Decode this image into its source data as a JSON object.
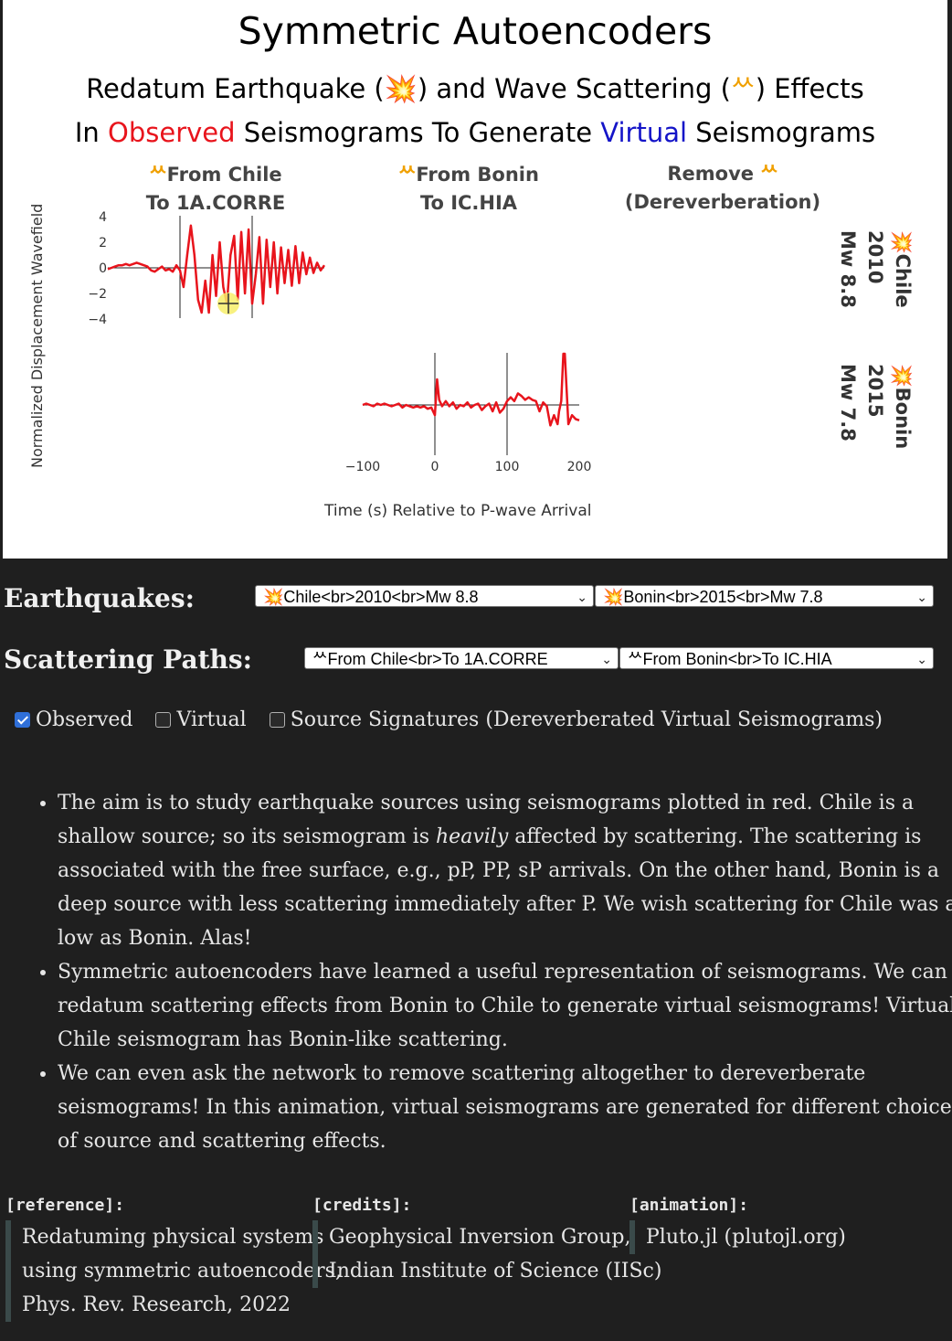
{
  "figure": {
    "title": "Symmetric Autoencoders",
    "subtitle1": {
      "part1": "Redatum Earthquake (",
      "quake_glyph": "💥",
      "part2": ") and Wave Scattering (",
      "scatter_glyph": "ᄊ",
      "part3": ") Effects"
    },
    "subtitle2": {
      "part1": "In ",
      "observed": "Observed",
      "part2": " Seismograms To Generate ",
      "virtual": "Virtual",
      "part3": " Seismograms"
    },
    "columns": [
      {
        "line1": "From Chile",
        "line2": "To 1A.CORRE"
      },
      {
        "line1": "From Bonin",
        "line2": "To IC.HIA"
      },
      {
        "line1": "Remove",
        "line2": "(Dereverberation)"
      }
    ],
    "rows": [
      {
        "name": "Chile",
        "year": "2010",
        "mag": "Mw 8.8"
      },
      {
        "name": "Bonin",
        "year": "2015",
        "mag": "Mw 7.8"
      }
    ],
    "ylabel": "Normalized Displacement Wavefield",
    "xlabel": "Time (s) Relative to P-wave Arrival",
    "colors": {
      "observed": "#e8141c",
      "virtual": "#1414c8",
      "scatter": "#f0a000"
    }
  },
  "chart_data": {
    "type": "line",
    "ylim": [
      -5,
      5
    ],
    "yticks": [
      "4",
      "2",
      "0",
      "−2",
      "−4"
    ],
    "ytick_values": [
      4,
      2,
      0,
      -2,
      -4
    ],
    "xlim": [
      -100,
      200
    ],
    "xticks": [
      "−100",
      "0",
      "100",
      "200"
    ],
    "xtick_values": [
      -100,
      0,
      100,
      200
    ],
    "series": [
      {
        "name": "Chile",
        "color": "#e8141c",
        "x": [
          -100,
          -95,
          -90,
          -85,
          -80,
          -75,
          -70,
          -65,
          -60,
          -55,
          -50,
          -45,
          -40,
          -35,
          -30,
          -25,
          -20,
          -15,
          -10,
          -5,
          0,
          5,
          10,
          15,
          20,
          25,
          30,
          35,
          40,
          45,
          50,
          55,
          60,
          65,
          70,
          75,
          80,
          85,
          90,
          95,
          100,
          105,
          110,
          115,
          120,
          125,
          130,
          135,
          140,
          145,
          150,
          155,
          160,
          165,
          170,
          175,
          180,
          185,
          190,
          195,
          200
        ],
        "y": [
          -0.1,
          0,
          0.1,
          0.2,
          0.2,
          0.3,
          0.2,
          0.3,
          0.4,
          0.3,
          0.2,
          0.1,
          -0.2,
          -0.3,
          -0.1,
          0.1,
          -0.2,
          -0.1,
          -0.3,
          0.2,
          -0.2,
          -1.5,
          1,
          3.3,
          1,
          -2.5,
          -3.5,
          -1,
          -3.5,
          1,
          -2.2,
          2,
          -1.5,
          -2.8,
          1,
          2.5,
          -2.5,
          2.8,
          -2,
          3,
          -2.8,
          -0.5,
          2.4,
          -2.8,
          2.2,
          -1.5,
          2,
          -2,
          1.6,
          -1.2,
          1.4,
          -1.4,
          1.7,
          -1.2,
          1.2,
          -0.5,
          0.8,
          -0.4,
          0.4,
          -0.2,
          0.2
        ]
      },
      {
        "name": "Bonin",
        "color": "#e8141c",
        "x": [
          -100,
          -95,
          -90,
          -85,
          -80,
          -75,
          -70,
          -65,
          -60,
          -55,
          -50,
          -45,
          -40,
          -35,
          -30,
          -25,
          -20,
          -15,
          -10,
          -5,
          0,
          3,
          6,
          10,
          15,
          20,
          25,
          30,
          35,
          40,
          45,
          50,
          55,
          60,
          65,
          70,
          75,
          80,
          85,
          90,
          95,
          100,
          105,
          110,
          115,
          120,
          125,
          130,
          135,
          140,
          145,
          150,
          155,
          160,
          165,
          170,
          172,
          175,
          178,
          180,
          185,
          190,
          195,
          200
        ],
        "y": [
          0,
          0.1,
          0,
          -0.1,
          0.1,
          0,
          0.1,
          0,
          -0.1,
          0,
          0.1,
          -0.2,
          0,
          -0.1,
          -0.2,
          -0.1,
          -0.2,
          -0.1,
          -0.3,
          -0.2,
          -0.8,
          2,
          0.4,
          -0.1,
          0.3,
          -0.1,
          0.2,
          -0.3,
          0,
          -0.1,
          0.2,
          -0.2,
          0,
          0.1,
          -0.4,
          -0.1,
          0.1,
          -0.5,
          0.2,
          -0.6,
          -0.3,
          0.3,
          0.6,
          0.3,
          0.9,
          0.7,
          0.4,
          0.6,
          0.4,
          0.3,
          -0.5,
          0.2,
          -0.1,
          -1.6,
          -0.8,
          -1.5,
          -0.5,
          0.3,
          4,
          4,
          -1.5,
          -0.8,
          -1.1,
          -1.2
        ]
      }
    ]
  },
  "controls": {
    "earthquakes_label": "Earthquakes:",
    "earthquake_select_1": "💥Chile<br>2010<br>Mw 8.8",
    "earthquake_select_2": "💥Bonin<br>2015<br>Mw 7.8",
    "scattering_label": "Scattering Paths:",
    "scatter_select_1": "ᄊFrom Chile<br>To 1A.CORRE",
    "scatter_select_2": "ᄊFrom Bonin<br>To IC.HIA",
    "chevron": "⌄",
    "checkboxes": [
      {
        "label": "Observed",
        "checked": true
      },
      {
        "label": "Virtual",
        "checked": false
      },
      {
        "label": "Source Signatures (Dereverberated Virtual Seismograms)",
        "checked": false
      }
    ]
  },
  "bullets": {
    "b1_part1": "The aim is to study earthquake sources using seismograms plotted in red. Chile is a shallow source; so its seismogram is ",
    "b1_em": "heavily",
    "b1_part2": " affected by scattering. The scattering is associated with the free surface, e.g., pP, PP, sP arrivals. On the other hand, Bonin is a deep source with less scattering immediately after P. We wish scattering for Chile was as low as Bonin. Alas!",
    "b2": "Symmetric autoencoders have learned a useful representation of seismograms. We can redatum scattering effects from Bonin to Chile to generate virtual seismograms! Virtual Chile seismogram has Bonin-like scattering.",
    "b3": "We can even ask the network to remove scattering altogether to dereverberate seismograms! In this animation, virtual seismograms are generated for different choices of source and scattering effects."
  },
  "footer": {
    "reference_head": "[reference]:",
    "reference_lines": [
      "Redatuming physical systems",
      "using symmetric autoencoders,",
      "Phys. Rev. Research, 2022"
    ],
    "credits_head": "[credits]:",
    "credits_lines": [
      "Geophysical Inversion Group,",
      "Indian Institute of Science (IISc)"
    ],
    "animation_head": "[animation]:",
    "animation_lines": [
      "Pluto.jl (plutojl.org)"
    ]
  }
}
